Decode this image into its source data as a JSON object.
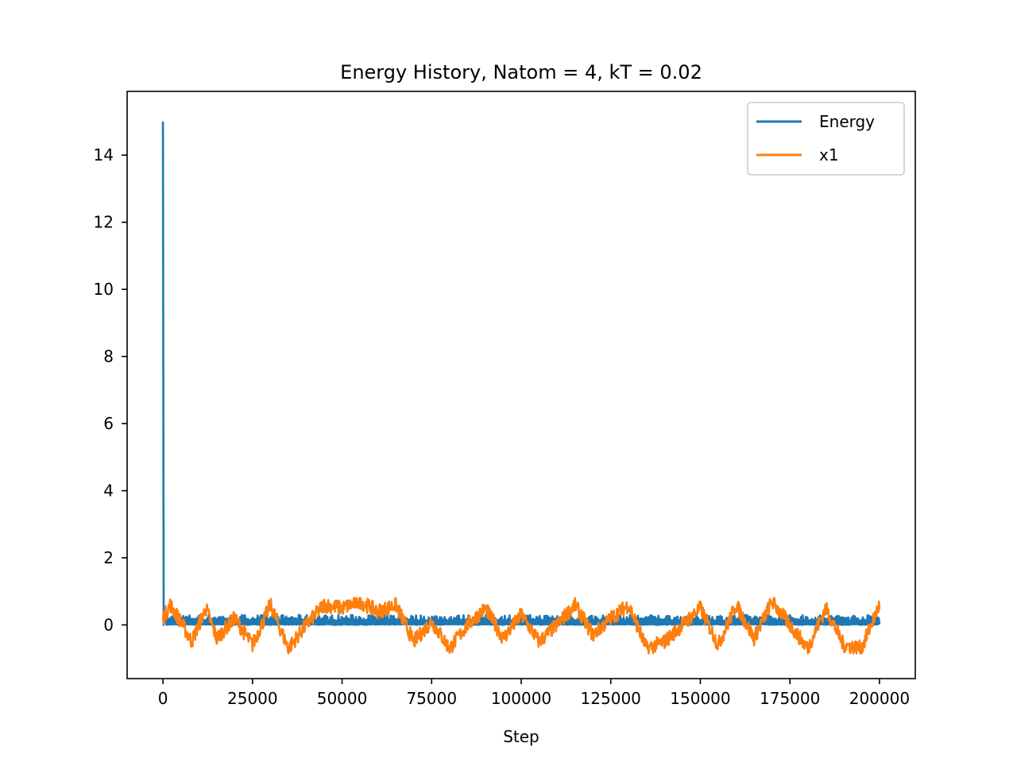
{
  "chart_data": {
    "type": "line",
    "title": "Energy History, Natom = 4, kT = 0.02",
    "xlabel": "Step",
    "ylabel": "",
    "xlim": [
      -10000,
      210000
    ],
    "ylim": [
      -1.6,
      15.9
    ],
    "xticks": [
      0,
      25000,
      50000,
      75000,
      100000,
      125000,
      150000,
      175000,
      200000
    ],
    "xtick_labels": [
      "0",
      "25000",
      "50000",
      "75000",
      "100000",
      "125000",
      "150000",
      "175000",
      "200000"
    ],
    "yticks": [
      0,
      2,
      4,
      6,
      8,
      10,
      12,
      14
    ],
    "ytick_labels": [
      "0",
      "2",
      "4",
      "6",
      "8",
      "10",
      "12",
      "14"
    ],
    "grid": false,
    "legend": {
      "position": "upper right",
      "entries": [
        "Energy",
        "x1"
      ]
    },
    "series": [
      {
        "name": "Energy",
        "color": "#1f77b4",
        "x": [
          0,
          200,
          500,
          1000,
          2000,
          5000,
          10000,
          20000,
          30000,
          40000,
          50000,
          60000,
          70000,
          80000,
          90000,
          100000,
          110000,
          120000,
          130000,
          140000,
          150000,
          160000,
          170000,
          180000,
          190000,
          200000
        ],
        "y": [
          15.0,
          0.6,
          0.3,
          0.15,
          0.12,
          0.13,
          0.12,
          0.14,
          0.12,
          0.13,
          0.12,
          0.15,
          0.12,
          0.12,
          0.14,
          0.12,
          0.13,
          0.12,
          0.12,
          0.13,
          0.12,
          0.12,
          0.13,
          0.12,
          0.13,
          0.12
        ],
        "band": [
          0.0,
          0.3
        ]
      },
      {
        "name": "x1",
        "color": "#ff7f0e",
        "x": [
          0,
          2000,
          5000,
          8000,
          12000,
          15000,
          20000,
          25000,
          30000,
          35000,
          40000,
          45000,
          50000,
          55000,
          60000,
          65000,
          70000,
          75000,
          80000,
          85000,
          90000,
          95000,
          100000,
          105000,
          110000,
          115000,
          120000,
          125000,
          130000,
          135000,
          140000,
          145000,
          150000,
          155000,
          160000,
          165000,
          170000,
          175000,
          180000,
          185000,
          190000,
          195000,
          200000
        ],
        "y": [
          0.2,
          0.6,
          0.1,
          -0.5,
          0.5,
          -0.4,
          0.2,
          -0.6,
          0.6,
          -0.7,
          0.0,
          0.6,
          0.5,
          0.7,
          0.4,
          0.6,
          -0.5,
          0.1,
          -0.7,
          0.0,
          0.5,
          -0.4,
          0.3,
          -0.5,
          0.0,
          0.6,
          -0.3,
          0.2,
          0.6,
          -0.7,
          -0.5,
          0.0,
          0.5,
          -0.6,
          0.6,
          -0.4,
          0.7,
          0.0,
          -0.7,
          0.5,
          -0.6,
          -0.7,
          0.6
        ],
        "range": [
          -0.85,
          0.8
        ]
      }
    ]
  }
}
